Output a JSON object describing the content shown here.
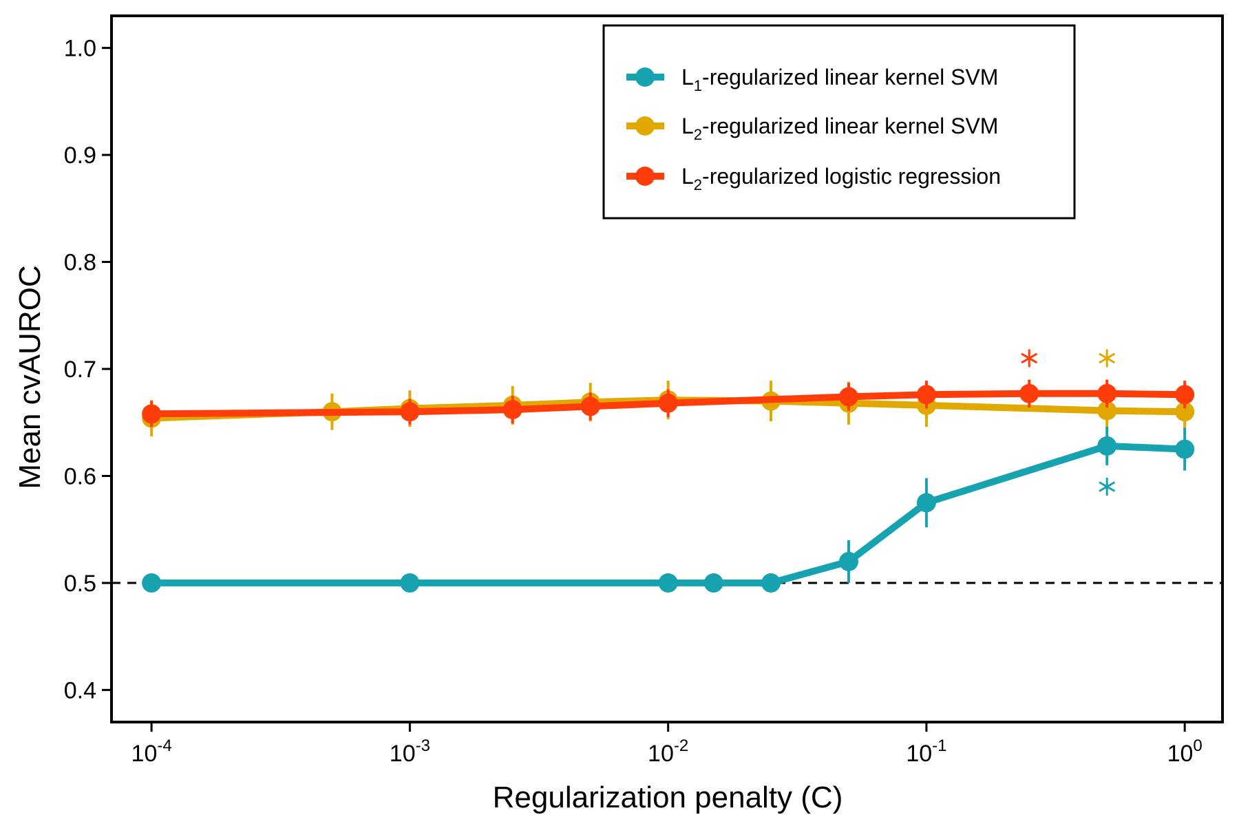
{
  "chart_data": {
    "type": "line",
    "xlabel": "Regularization penalty (C)",
    "ylabel": "Mean cvAUROC",
    "x_scale": "log",
    "xlim": [
      7e-05,
      1.4
    ],
    "ylim": [
      0.37,
      1.03
    ],
    "x_ticks": [
      {
        "value": 0.0001,
        "base": "10",
        "exp": "-4"
      },
      {
        "value": 0.001,
        "base": "10",
        "exp": "-3"
      },
      {
        "value": 0.01,
        "base": "10",
        "exp": "-2"
      },
      {
        "value": 0.1,
        "base": "10",
        "exp": "-1"
      },
      {
        "value": 1,
        "base": "10",
        "exp": "0"
      }
    ],
    "y_ticks": [
      {
        "value": 0.4,
        "label": "0.4"
      },
      {
        "value": 0.5,
        "label": "0.5"
      },
      {
        "value": 0.6,
        "label": "0.6"
      },
      {
        "value": 0.7,
        "label": "0.7"
      },
      {
        "value": 0.8,
        "label": "0.8"
      },
      {
        "value": 0.9,
        "label": "0.9"
      },
      {
        "value": 1.0,
        "label": "1.0"
      }
    ],
    "grid": false,
    "legend_position": "top-right",
    "reference_line": {
      "y": 0.5,
      "style": "dashed"
    },
    "series": [
      {
        "key": "l1svm",
        "name_parts": {
          "pre": "L",
          "sub": "1",
          "post": "-regularized linear kernel SVM"
        },
        "color": "#17A2B0",
        "x": [
          0.0001,
          0.001,
          0.01,
          0.015,
          0.025,
          0.05,
          0.1,
          0.5,
          1.0
        ],
        "y": [
          0.5,
          0.5,
          0.5,
          0.5,
          0.5,
          0.52,
          0.575,
          0.628,
          0.625
        ],
        "err": [
          0,
          0,
          0,
          0,
          0,
          0.02,
          0.023,
          0.018,
          0.02
        ],
        "best": {
          "x": 0.5,
          "y": 0.59
        }
      },
      {
        "key": "l2svm",
        "name_parts": {
          "pre": "L",
          "sub": "2",
          "post": "-regularized linear kernel SVM"
        },
        "color": "#E0A800",
        "x": [
          0.0001,
          0.0005,
          0.001,
          0.0025,
          0.005,
          0.01,
          0.025,
          0.05,
          0.1,
          0.5,
          1.0
        ],
        "y": [
          0.654,
          0.66,
          0.663,
          0.666,
          0.669,
          0.671,
          0.67,
          0.668,
          0.666,
          0.661,
          0.66
        ],
        "err": [
          0.017,
          0.017,
          0.017,
          0.018,
          0.018,
          0.018,
          0.019,
          0.02,
          0.02,
          0.02,
          0.018
        ],
        "best": {
          "x": 0.5,
          "y": 0.71
        }
      },
      {
        "key": "l2lr",
        "name_parts": {
          "pre": "L",
          "sub": "2",
          "post": "-regularized logistic regression"
        },
        "color": "#FF3D0A",
        "x": [
          0.0001,
          0.001,
          0.0025,
          0.005,
          0.01,
          0.05,
          0.1,
          0.25,
          0.5,
          1.0
        ],
        "y": [
          0.658,
          0.66,
          0.662,
          0.665,
          0.668,
          0.674,
          0.676,
          0.677,
          0.677,
          0.676
        ],
        "err": [
          0.012,
          0.012,
          0.013,
          0.013,
          0.013,
          0.013,
          0.013,
          0.013,
          0.013,
          0.013
        ],
        "best": {
          "x": 0.25,
          "y": 0.71
        }
      }
    ]
  }
}
